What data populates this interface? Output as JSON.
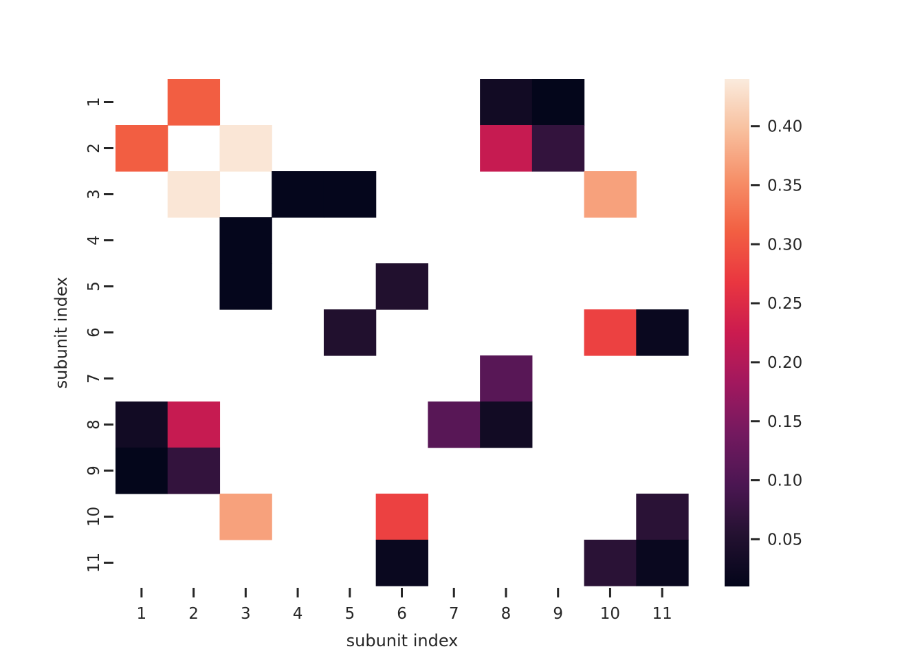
{
  "chart_data": {
    "type": "heatmap",
    "title": "",
    "xlabel": "subunit index",
    "ylabel": "subunit index",
    "x_categories": [
      "1",
      "2",
      "3",
      "4",
      "5",
      "6",
      "7",
      "8",
      "9",
      "10",
      "11"
    ],
    "y_categories": [
      "1",
      "2",
      "3",
      "4",
      "5",
      "6",
      "7",
      "8",
      "9",
      "10",
      "11"
    ],
    "colormap": "rocket",
    "vmin": 0.01,
    "vmax": 0.44,
    "masked_cells": "empty (white)",
    "colorbar_ticks": [
      "0.05",
      "0.10",
      "0.15",
      "0.20",
      "0.25",
      "0.30",
      "0.35",
      "0.40"
    ],
    "cells": [
      {
        "row": "1",
        "col": "2",
        "value": 0.31
      },
      {
        "row": "1",
        "col": "8",
        "value": 0.03
      },
      {
        "row": "1",
        "col": "9",
        "value": 0.012
      },
      {
        "row": "2",
        "col": "1",
        "value": 0.31
      },
      {
        "row": "2",
        "col": "3",
        "value": 0.435
      },
      {
        "row": "2",
        "col": "8",
        "value": 0.22
      },
      {
        "row": "2",
        "col": "9",
        "value": 0.07
      },
      {
        "row": "3",
        "col": "2",
        "value": 0.435
      },
      {
        "row": "3",
        "col": "4",
        "value": 0.013
      },
      {
        "row": "3",
        "col": "5",
        "value": 0.013
      },
      {
        "row": "3",
        "col": "10",
        "value": 0.37
      },
      {
        "row": "4",
        "col": "3",
        "value": 0.013
      },
      {
        "row": "5",
        "col": "3",
        "value": 0.013
      },
      {
        "row": "5",
        "col": "6",
        "value": 0.05
      },
      {
        "row": "6",
        "col": "5",
        "value": 0.05
      },
      {
        "row": "6",
        "col": "10",
        "value": 0.28
      },
      {
        "row": "6",
        "col": "11",
        "value": 0.02
      },
      {
        "row": "7",
        "col": "8",
        "value": 0.11
      },
      {
        "row": "8",
        "col": "1",
        "value": 0.03
      },
      {
        "row": "8",
        "col": "2",
        "value": 0.22
      },
      {
        "row": "8",
        "col": "7",
        "value": 0.11
      },
      {
        "row": "8",
        "col": "8",
        "value": 0.03
      },
      {
        "row": "9",
        "col": "1",
        "value": 0.012
      },
      {
        "row": "9",
        "col": "2",
        "value": 0.07
      },
      {
        "row": "10",
        "col": "3",
        "value": 0.37
      },
      {
        "row": "10",
        "col": "6",
        "value": 0.28
      },
      {
        "row": "10",
        "col": "11",
        "value": 0.06
      },
      {
        "row": "11",
        "col": "6",
        "value": 0.02
      },
      {
        "row": "11",
        "col": "10",
        "value": 0.06
      },
      {
        "row": "11",
        "col": "11",
        "value": 0.02
      }
    ]
  }
}
